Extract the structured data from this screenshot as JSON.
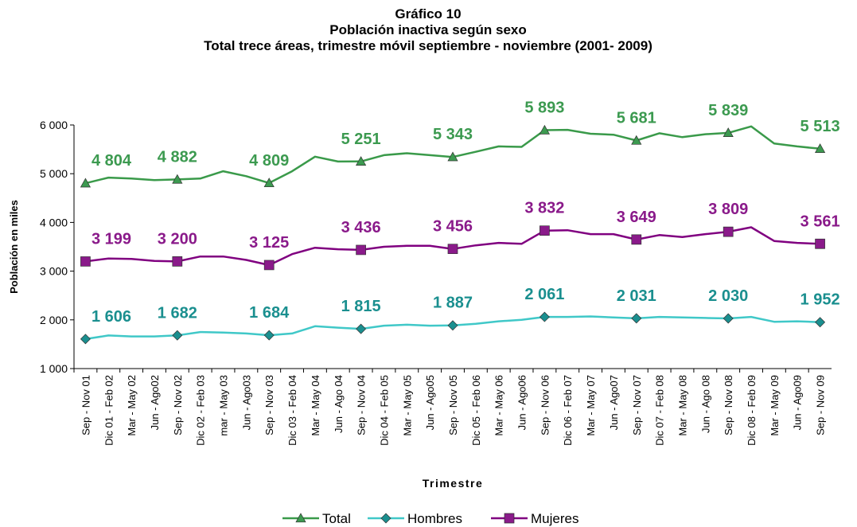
{
  "chart_data": {
    "type": "line",
    "title": "Gráfico 10",
    "subtitle": [
      "Población inactiva según sexo",
      "Total trece áreas, trimestre móvil septiembre - noviembre (2001- 2009)"
    ],
    "y_label": "Población en miles",
    "x_label": "Trimestre",
    "ylim": [
      1000,
      6000
    ],
    "yticks": [
      {
        "value": 1000,
        "label": "1 000"
      },
      {
        "value": 2000,
        "label": "2 000"
      },
      {
        "value": 3000,
        "label": "3 000"
      },
      {
        "value": 4000,
        "label": "4 000"
      },
      {
        "value": 5000,
        "label": "5 000"
      },
      {
        "value": 6000,
        "label": "6 000"
      }
    ],
    "categories": [
      "Sep - Nov 01",
      "Dic 01 - Feb 02",
      "Mar - May 02",
      "Jun - Ago02",
      "Sep - Nov 02",
      "Dic 02 - Feb 03",
      "mar - May 03",
      "Jun - Ago03",
      "Sep - Nov 03",
      "Dic 03 - Feb 04",
      "Mar - May 04",
      "Jun - Ago 04",
      "Sep - Nov 04",
      "Dic 04 - Feb 05",
      "Mar - May 05",
      "Jun - Ago05",
      "Sep - Nov 05",
      "Dic 05 - Feb 06",
      "Mar - May 06",
      "Jun - Ago06",
      "Sep - Nov 06",
      "Dic  06 - Feb 07",
      "Mar - May 07",
      "Jun - Ago07",
      "Sep - Nov 07",
      "Dic 07 - Feb 08",
      "Mar - May 08",
      "Jun - Ago 08",
      "Sep - Nov 08",
      "Dic 08 - Feb 09",
      "Mar - May 09",
      "Jun - Ago09",
      "Sep - Nov 09"
    ],
    "series": [
      {
        "name": "Total",
        "color": "#3a9a4a",
        "marker": "triangle",
        "label_color": "#3c9a50",
        "values": [
          4804,
          4920,
          4900,
          4870,
          4882,
          4900,
          5050,
          4950,
          4809,
          5050,
          5350,
          5250,
          5251,
          5380,
          5420,
          5380,
          5343,
          5450,
          5560,
          5550,
          5893,
          5900,
          5820,
          5800,
          5681,
          5830,
          5750,
          5810,
          5839,
          5970,
          5620,
          5560,
          5513
        ],
        "value_labels": [
          "4 804",
          null,
          null,
          null,
          "4 882",
          null,
          null,
          null,
          "4 809",
          null,
          null,
          null,
          "5 251",
          null,
          null,
          null,
          "5 343",
          null,
          null,
          null,
          "5 893",
          null,
          null,
          null,
          "5 681",
          null,
          null,
          null,
          "5 839",
          null,
          null,
          null,
          "5 513"
        ]
      },
      {
        "name": "Hombres",
        "color": "#40c8c8",
        "marker": "diamond",
        "label_color": "#1a8f8f",
        "values": [
          1606,
          1680,
          1660,
          1660,
          1682,
          1750,
          1740,
          1720,
          1684,
          1720,
          1870,
          1840,
          1815,
          1880,
          1900,
          1880,
          1887,
          1920,
          1970,
          2000,
          2061,
          2060,
          2070,
          2050,
          2031,
          2060,
          2050,
          2040,
          2030,
          2060,
          1960,
          1970,
          1952
        ],
        "value_labels": [
          "1 606",
          null,
          null,
          null,
          "1 682",
          null,
          null,
          null,
          "1 684",
          null,
          null,
          null,
          "1 815",
          null,
          null,
          null,
          "1 887",
          null,
          null,
          null,
          "2 061",
          null,
          null,
          null,
          "2 031",
          null,
          null,
          null,
          "2 030",
          null,
          null,
          null,
          "1 952"
        ]
      },
      {
        "name": "Mujeres",
        "color": "#800080",
        "marker": "square",
        "label_color": "#8a1a8a",
        "values": [
          3199,
          3260,
          3250,
          3210,
          3200,
          3300,
          3300,
          3230,
          3125,
          3350,
          3480,
          3450,
          3436,
          3500,
          3520,
          3520,
          3456,
          3530,
          3580,
          3560,
          3832,
          3840,
          3760,
          3760,
          3649,
          3740,
          3700,
          3760,
          3809,
          3900,
          3620,
          3580,
          3561
        ],
        "value_labels": [
          "3 199",
          null,
          null,
          null,
          "3 200",
          null,
          null,
          null,
          "3 125",
          null,
          null,
          null,
          "3 436",
          null,
          null,
          null,
          "3 456",
          null,
          null,
          null,
          "3 832",
          null,
          null,
          null,
          "3 649",
          null,
          null,
          null,
          "3 809",
          null,
          null,
          null,
          "3 561"
        ]
      }
    ],
    "legend": "bottom"
  }
}
